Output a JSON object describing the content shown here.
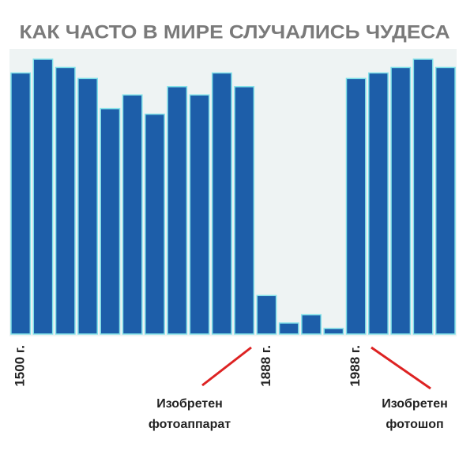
{
  "chart_data": {
    "type": "bar",
    "title": "КАК ЧАСТО В МИРЕ СЛУЧАЛИСЬ ЧУДЕСА",
    "categories": [
      "1500 г.",
      null,
      null,
      null,
      null,
      null,
      null,
      null,
      null,
      null,
      null,
      "1888 г.",
      null,
      null,
      null,
      "1988 г.",
      null,
      null,
      null,
      null
    ],
    "values": [
      95,
      100,
      97,
      93,
      82,
      87,
      80,
      90,
      87,
      95,
      90,
      14,
      4,
      7,
      2,
      93,
      95,
      97,
      100,
      97
    ],
    "color": "#1d5ea9",
    "ylim": [
      0,
      100
    ],
    "annotations": [
      [
        "Изобретен",
        "фотоаппарат"
      ],
      [
        "Изобретен",
        "фотошоп"
      ]
    ]
  }
}
